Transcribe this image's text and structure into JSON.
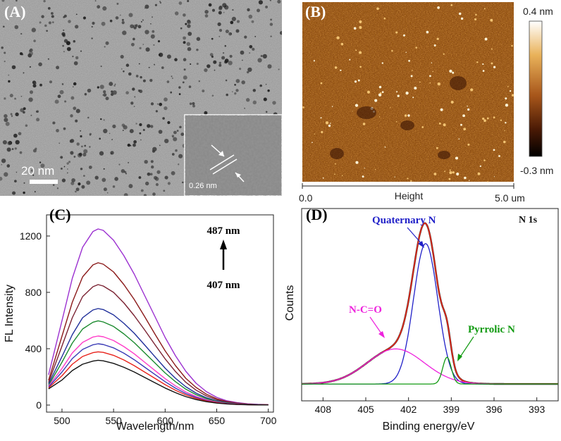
{
  "figure": {
    "panels": [
      {
        "label": "(A)",
        "scale_bar": "20 nm",
        "inset_spacing": "0.26 nm"
      },
      {
        "label": "(B)",
        "colorbar_max": "0.4 nm",
        "colorbar_min": "-0.3 nm",
        "axis_start": "0.0",
        "axis_title": "Height",
        "axis_end": "5.0 um"
      },
      {
        "label": "(C)"
      },
      {
        "label": "(D)",
        "corner_label": "N 1s"
      }
    ]
  },
  "chart_data": [
    {
      "type": "line",
      "xlabel": "Wavelength/nm",
      "ylabel": "FL Intensity",
      "xlim": [
        485,
        705
      ],
      "ylim": [
        -50,
        1350
      ],
      "xticks": [
        "500",
        "550",
        "600",
        "650",
        "700"
      ],
      "yticks": [
        "0",
        "400",
        "800",
        "1200"
      ],
      "annotation_top": "487 nm",
      "annotation_bottom": "407 nm",
      "x": [
        487,
        500,
        510,
        520,
        530,
        535,
        540,
        550,
        560,
        570,
        580,
        590,
        600,
        610,
        620,
        630,
        640,
        650,
        660,
        670,
        680,
        690,
        700
      ],
      "series": [
        {
          "color": "#9b30d0",
          "values": [
            215,
            600,
            900,
            1120,
            1232,
            1250,
            1240,
            1170,
            1060,
            930,
            780,
            630,
            480,
            350,
            240,
            155,
            95,
            55,
            30,
            17,
            9,
            5,
            3
          ]
        },
        {
          "color": "#8b1a1a",
          "values": [
            175,
            490,
            730,
            910,
            995,
            1010,
            1000,
            945,
            855,
            750,
            630,
            505,
            385,
            280,
            190,
            125,
            77,
            45,
            25,
            14,
            7,
            4,
            2
          ]
        },
        {
          "color": "#7a2232",
          "values": [
            160,
            420,
            620,
            770,
            840,
            855,
            845,
            800,
            725,
            635,
            535,
            430,
            328,
            238,
            162,
            106,
            65,
            38,
            21,
            12,
            6,
            3,
            2
          ]
        },
        {
          "color": "#1f2f9a",
          "values": [
            150,
            345,
            500,
            620,
            675,
            685,
            678,
            640,
            580,
            510,
            428,
            344,
            262,
            190,
            130,
            85,
            52,
            30,
            17,
            9,
            5,
            3,
            1
          ]
        },
        {
          "color": "#1b8a2e",
          "values": [
            140,
            305,
            440,
            540,
            588,
            598,
            590,
            558,
            505,
            443,
            372,
            300,
            228,
            166,
            113,
            74,
            45,
            26,
            15,
            8,
            4,
            2,
            1
          ]
        },
        {
          "color": "#ff3cc8",
          "values": [
            135,
            260,
            370,
            445,
            483,
            490,
            485,
            458,
            415,
            364,
            305,
            246,
            188,
            136,
            93,
            61,
            37,
            22,
            12,
            7,
            3,
            2,
            1
          ]
        },
        {
          "color": "#3a3ab5",
          "values": [
            128,
            235,
            330,
            395,
            428,
            435,
            430,
            406,
            368,
            322,
            270,
            218,
            166,
            120,
            82,
            54,
            33,
            19,
            11,
            6,
            3,
            2,
            1
          ]
        },
        {
          "color": "#e8221b",
          "values": [
            122,
            208,
            290,
            345,
            372,
            378,
            374,
            353,
            320,
            280,
            235,
            190,
            145,
            105,
            72,
            47,
            29,
            17,
            9,
            5,
            3,
            1,
            1
          ]
        },
        {
          "color": "#111111",
          "values": [
            115,
            178,
            245,
            290,
            312,
            318,
            314,
            296,
            268,
            235,
            197,
            159,
            121,
            88,
            60,
            39,
            24,
            14,
            8,
            4,
            2,
            1,
            1
          ]
        }
      ]
    },
    {
      "type": "line",
      "xlabel": "Binding energy/eV",
      "ylabel": "Counts",
      "xlim": [
        409.5,
        391.5
      ],
      "ylim": [
        -0.12,
        1.25
      ],
      "xticks": [
        "408",
        "405",
        "402",
        "399",
        "396",
        "393"
      ],
      "x_tick_values": [
        408,
        405,
        402,
        399,
        396,
        393
      ],
      "series_labels": [
        "Quaternary N",
        "N-C=O",
        "Pyrrolic N"
      ],
      "series": [
        {
          "name": "Quaternary N",
          "color": "#2020c8",
          "peak": {
            "center": 400.8,
            "height": 1.0,
            "sigma": 0.85
          }
        },
        {
          "name": "N-C=O",
          "color": "#ee22dd",
          "peak": {
            "center": 402.9,
            "height": 0.25,
            "sigma": 2.0
          }
        },
        {
          "name": "Pyrrolic N",
          "color": "#119a11",
          "peak": {
            "center": 399.3,
            "height": 0.19,
            "sigma": 0.3
          }
        },
        {
          "color": "#111111",
          "sum_of_peaks": true
        },
        {
          "color": "#ee2a1a",
          "sum_of_peaks": true
        }
      ]
    }
  ]
}
